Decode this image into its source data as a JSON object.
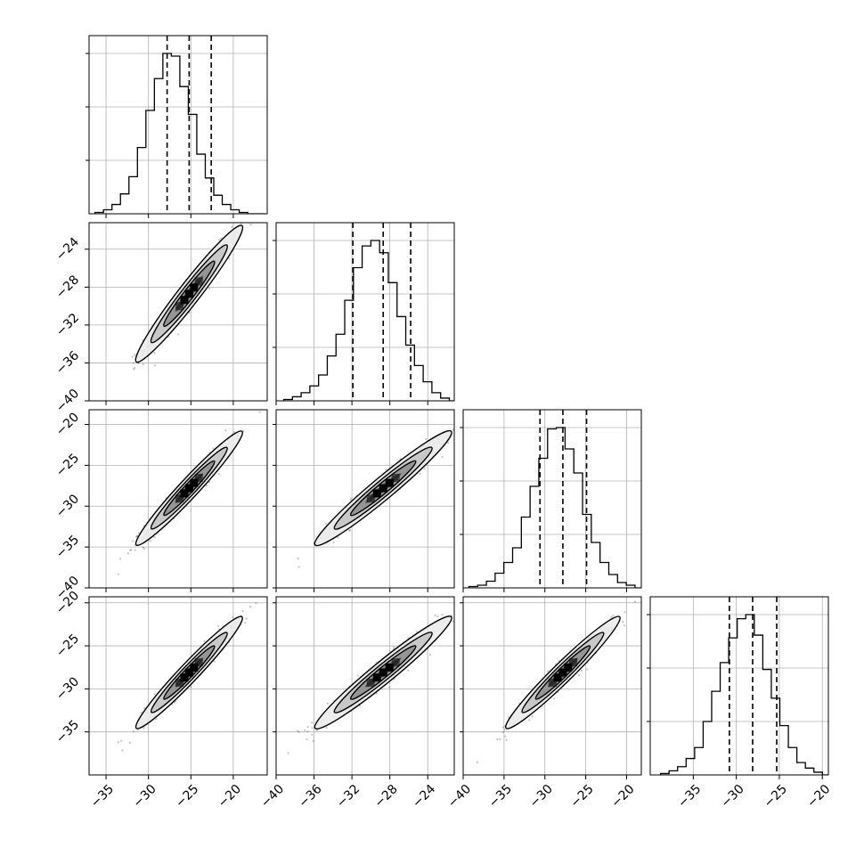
{
  "colors": {
    "background": "#ffffff",
    "axes": "#000000",
    "grid": "#b0b0b0",
    "points": "#555555",
    "contour_line": "#000000",
    "contour_fills": [
      "#ebebeb",
      "#c4c4c4",
      "#8f8f8f",
      "#555555"
    ],
    "core_blocks": "#000000"
  },
  "chart_data": {
    "type": "corner",
    "grid": true,
    "dimensions": [
      {
        "name": "",
        "range": [
          -37,
          -16
        ],
        "ticks": [
          -35,
          -30,
          -25,
          -20
        ],
        "tick_labels": [
          "−35",
          "−30",
          "−25",
          "−20"
        ]
      },
      {
        "name": "",
        "range": [
          -40,
          -21.2
        ],
        "ticks": [
          -40,
          -36,
          -32,
          -28,
          -24
        ],
        "tick_labels": [
          "−40",
          "−36",
          "−32",
          "−28",
          "−24"
        ]
      },
      {
        "name": "",
        "range": [
          -40,
          -18.2
        ],
        "ticks": [
          -40,
          -35,
          -30,
          -25,
          -20
        ],
        "tick_labels": [
          "−40",
          "−35",
          "−30",
          "−25",
          "−20"
        ]
      },
      {
        "name": "",
        "range": [
          -40,
          -19.3
        ],
        "ticks": [
          -35,
          -30,
          -25,
          -20
        ],
        "tick_labels": [
          "−35",
          "−30",
          "−25",
          "−20"
        ]
      }
    ],
    "row_ticks": [
      null,
      {
        "ticks": [
          -40,
          -36,
          -32,
          -28,
          -24
        ],
        "tick_labels": [
          "−40",
          "−36",
          "−32",
          "−28",
          "−24"
        ]
      },
      {
        "ticks": [
          -40,
          -35,
          -30,
          -25,
          -20
        ],
        "tick_labels": [
          "−40",
          "−35",
          "−30",
          "−25",
          "−20"
        ]
      },
      {
        "ticks": [
          -35,
          -30,
          -25,
          -20
        ],
        "tick_labels": [
          "−35",
          "−30",
          "−25",
          "−20"
        ]
      }
    ],
    "histograms": [
      {
        "bin_start": -36.3,
        "bin_width": 1.0,
        "counts": [
          1,
          3,
          7,
          15,
          28,
          50,
          78,
          102,
          121,
          119,
          96,
          75,
          45,
          27,
          14,
          7,
          3,
          1,
          0,
          0
        ],
        "quantiles": [
          -27.8,
          -25.2,
          -22.6
        ]
      },
      {
        "bin_start": -39.2,
        "bin_width": 0.92,
        "counts": [
          1,
          3,
          6,
          11,
          19,
          33,
          49,
          74,
          98,
          114,
          118,
          109,
          87,
          62,
          41,
          26,
          14,
          6,
          2,
          0
        ],
        "quantiles": [
          -31.9,
          -28.7,
          -25.8
        ]
      },
      {
        "bin_start": -39.3,
        "bin_width": 1.07,
        "counts": [
          1,
          2,
          5,
          11,
          19,
          30,
          53,
          76,
          97,
          119,
          120,
          104,
          86,
          55,
          34,
          19,
          10,
          4,
          2,
          0
        ],
        "quantiles": [
          -30.6,
          -27.8,
          -24.9
        ]
      },
      {
        "bin_start": -38.8,
        "bin_width": 0.99,
        "counts": [
          1,
          3,
          6,
          12,
          20,
          39,
          61,
          82,
          100,
          114,
          117,
          102,
          77,
          56,
          36,
          20,
          9,
          5,
          2,
          0
        ],
        "quantiles": [
          -30.8,
          -28.1,
          -25.3
        ]
      }
    ],
    "correlation": 0.97,
    "mean": [
      -25.2,
      -28.7,
      -27.8,
      -28.1
    ],
    "sigma": [
      2.6,
      3.0,
      2.9,
      2.7
    ]
  }
}
